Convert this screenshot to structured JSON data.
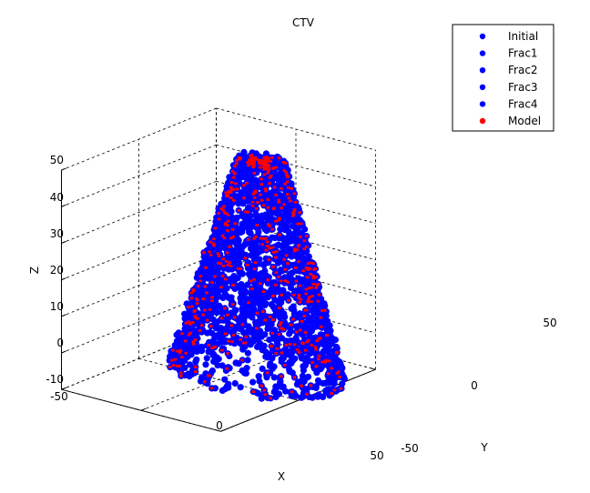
{
  "chart_data": {
    "type": "scatter",
    "title": "CTV",
    "xlabel": "X",
    "ylabel": "Y",
    "zlabel": "Z",
    "xlim": [
      -50,
      50
    ],
    "ylim": [
      -50,
      50
    ],
    "zlim": [
      -10,
      50
    ],
    "xticks": [
      "-50",
      "0",
      "50"
    ],
    "yticks": [
      "-50",
      "0",
      "50"
    ],
    "zticks": [
      "-10",
      "0",
      "10",
      "20",
      "30",
      "40",
      "50"
    ],
    "grid": true,
    "legend_position": "top-right",
    "series": [
      {
        "name": "Initial",
        "color": "#0000ff",
        "marker": "asterisk"
      },
      {
        "name": "Frac1",
        "color": "#0000ff",
        "marker": "asterisk"
      },
      {
        "name": "Frac2",
        "color": "#0000ff",
        "marker": "asterisk"
      },
      {
        "name": "Frac3",
        "color": "#0000ff",
        "marker": "asterisk"
      },
      {
        "name": "Frac4",
        "color": "#0000ff",
        "marker": "asterisk"
      },
      {
        "name": "Model",
        "color": "#ff0000",
        "marker": "asterisk"
      }
    ]
  }
}
